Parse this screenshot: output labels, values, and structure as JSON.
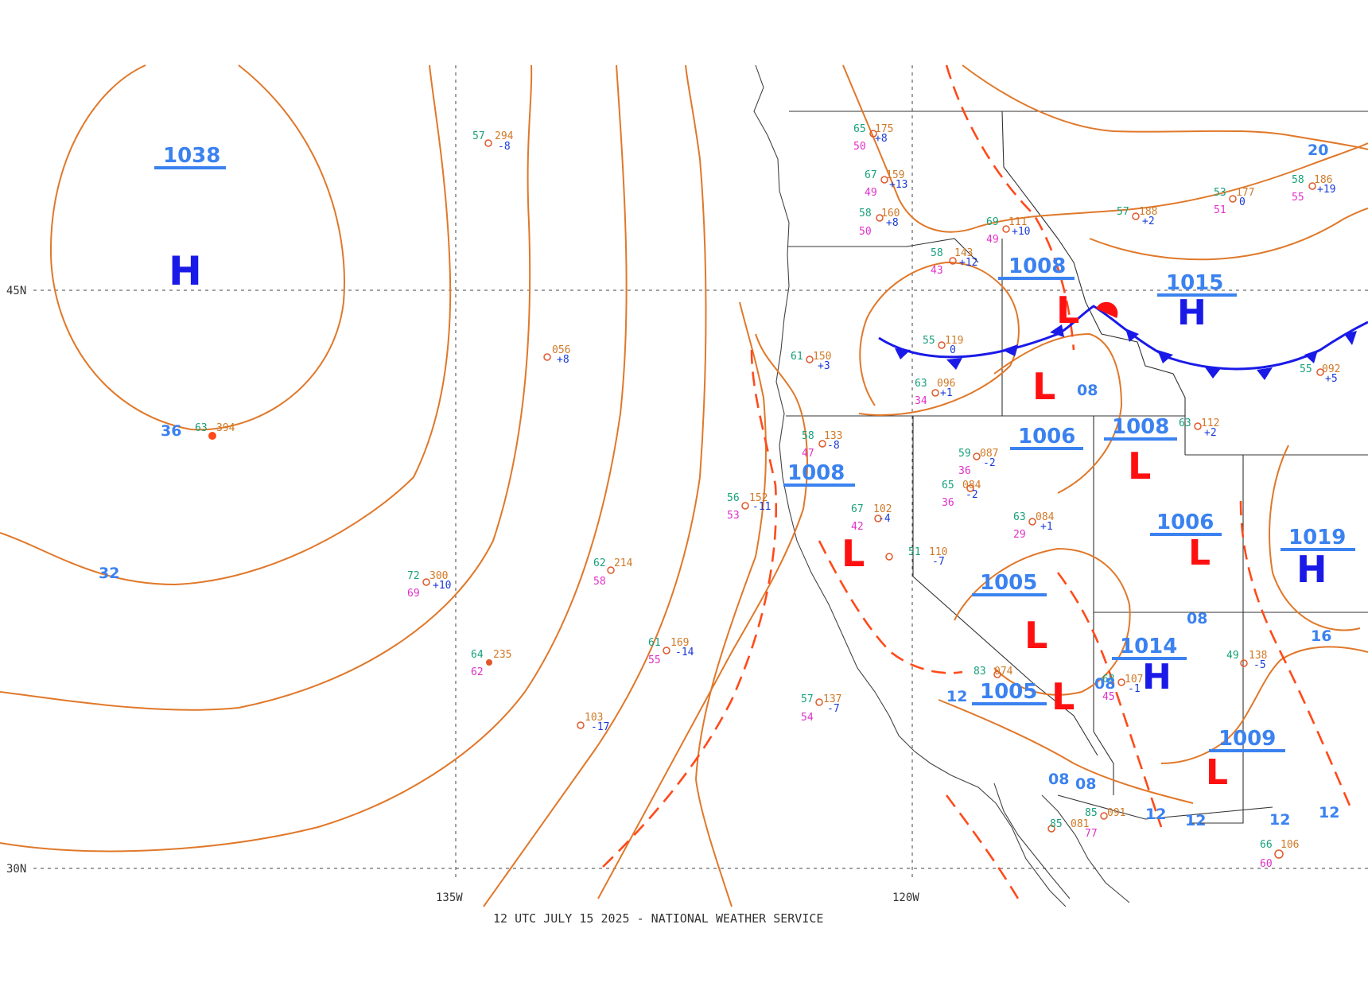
{
  "footer": {
    "caption": "12 UTC JULY 15 2025 - NATIONAL WEATHER SERVICE"
  },
  "grid": {
    "lat_labels": [
      "45N",
      "30N"
    ],
    "lon_labels": [
      "135W",
      "120W"
    ]
  },
  "colors": {
    "isobar": "#e0782a",
    "trough": "#ff4a1a",
    "high": "#1a1ae8",
    "low": "#ff1010",
    "label": "#3b82f0",
    "front": "#1a1ae8"
  },
  "pressure_centers": [
    {
      "type": "H",
      "value": "1038"
    },
    {
      "type": "L",
      "value": "1008"
    },
    {
      "type": "H",
      "value": "1015"
    },
    {
      "type": "L",
      "value": "1008"
    },
    {
      "type": "L",
      "value": "1006"
    },
    {
      "type": "L",
      "value": "1008"
    },
    {
      "type": "L",
      "value": "1006"
    },
    {
      "type": "H",
      "value": "1019"
    },
    {
      "type": "L",
      "value": "1005"
    },
    {
      "type": "H",
      "value": "1014"
    },
    {
      "type": "L",
      "value": "1005"
    },
    {
      "type": "L",
      "value": "1009"
    }
  ],
  "lows_unlabeled": [
    {
      "type": "L"
    },
    {
      "type": "L"
    }
  ],
  "isobar_labels": [
    "36",
    "32",
    "08",
    "08",
    "08",
    "08",
    "08",
    "12",
    "12",
    "12",
    "12",
    "12",
    "16",
    "20"
  ],
  "stations": [
    {
      "t": "57",
      "p": "294",
      "tend": "-8",
      "d": ""
    },
    {
      "t": "63",
      "p": "394",
      "tend": "",
      "d": ""
    },
    {
      "t": "",
      "p": "056",
      "tend": "+8",
      "d": ""
    },
    {
      "t": "72",
      "p": "300",
      "tend": "+10",
      "d": "69"
    },
    {
      "t": "62",
      "p": "214",
      "tend": "",
      "d": "58"
    },
    {
      "t": "64",
      "p": "235",
      "tend": "",
      "d": "62"
    },
    {
      "t": "61",
      "p": "169",
      "tend": "-14",
      "d": "55"
    },
    {
      "t": "",
      "p": "103",
      "tend": "-17",
      "d": ""
    },
    {
      "t": "57",
      "p": "137",
      "tend": "-7",
      "d": "54"
    },
    {
      "t": "56",
      "p": "152",
      "tend": "-11",
      "d": "53"
    },
    {
      "t": "65",
      "p": "175",
      "tend": "+8",
      "d": "50"
    },
    {
      "t": "67",
      "p": "159",
      "tend": "+13",
      "d": "49"
    },
    {
      "t": "58",
      "p": "160",
      "tend": "+8",
      "d": "50"
    },
    {
      "t": "69",
      "p": "111",
      "tend": "+10",
      "d": "49"
    },
    {
      "t": "58",
      "p": "143",
      "tend": "+12",
      "d": "43"
    },
    {
      "t": "59",
      "p": "087",
      "tend": "-2",
      "d": "36"
    },
    {
      "t": "65",
      "p": "084",
      "tend": "-2",
      "d": "36"
    },
    {
      "t": "67",
      "p": "102",
      "tend": "-4",
      "d": "42"
    },
    {
      "t": "63",
      "p": "096",
      "tend": "+1",
      "d": "34"
    },
    {
      "t": "53",
      "p": "177",
      "tend": "0",
      "d": "51"
    },
    {
      "t": "57",
      "p": "188",
      "tend": "+2",
      "d": ""
    },
    {
      "t": "58",
      "p": "186",
      "tend": "+19",
      "d": "55"
    },
    {
      "t": "63",
      "p": "112",
      "tend": "+2",
      "d": ""
    },
    {
      "t": "55",
      "p": "092",
      "tend": "+5",
      "d": ""
    },
    {
      "t": "68",
      "p": "107",
      "tend": "-1",
      "d": "45"
    },
    {
      "t": "49",
      "p": "138",
      "tend": "-5",
      "d": ""
    },
    {
      "t": "63",
      "p": "084",
      "tend": "+1",
      "d": "29"
    },
    {
      "t": "51",
      "p": "110",
      "tend": "-7",
      "d": ""
    },
    {
      "t": "58",
      "p": "133",
      "tend": "-8",
      "d": "47"
    },
    {
      "t": "55",
      "p": "119",
      "tend": "0",
      "d": ""
    },
    {
      "t": "61",
      "p": "150",
      "tend": "+3",
      "d": ""
    },
    {
      "t": "83",
      "p": "074",
      "tend": "",
      "d": ""
    },
    {
      "t": "85",
      "p": "091",
      "tend": "",
      "d": ""
    },
    {
      "t": "85",
      "p": "081",
      "tend": "",
      "d": "77"
    },
    {
      "t": "66",
      "p": "106",
      "tend": "",
      "d": "60"
    }
  ]
}
